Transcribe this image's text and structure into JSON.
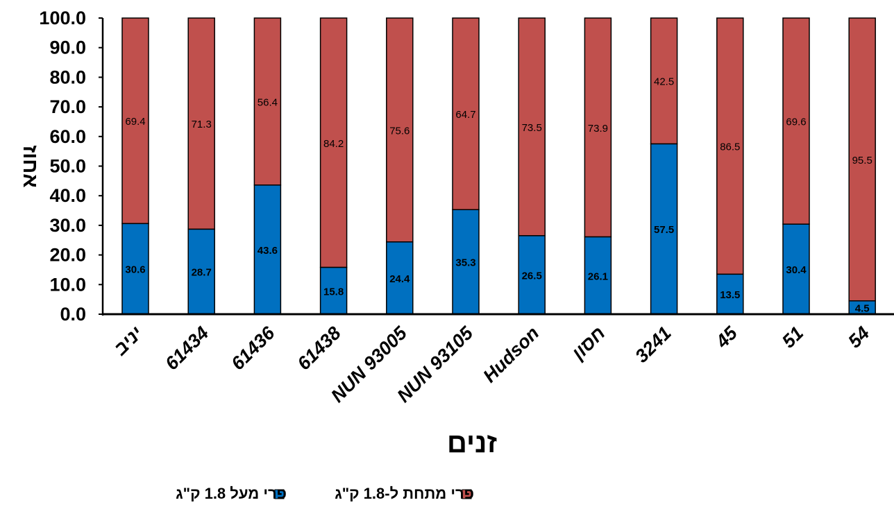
{
  "chart_data": {
    "type": "bar",
    "stacked": true,
    "categories": [
      "יניב",
      "61434",
      "61436",
      "61438",
      "NUN 93005",
      "NUN 93105",
      "Hudson",
      "חסון",
      "3241",
      "45",
      "51",
      "54"
    ],
    "series": [
      {
        "name": "פרי מעל 1.8 ק\"ג",
        "color": "#0070C0",
        "values": [
          30.6,
          28.7,
          43.6,
          15.8,
          24.4,
          35.3,
          26.5,
          26.1,
          57.5,
          13.5,
          30.4,
          4.5
        ]
      },
      {
        "name": "פרי מתחת ל-1.8 ק\"ג",
        "color": "#C0504D",
        "values": [
          69.4,
          71.3,
          56.4,
          84.2,
          75.6,
          64.7,
          73.5,
          73.9,
          42.5,
          86.5,
          69.6,
          95.5
        ]
      }
    ],
    "value_labels": {
      "bottom": [
        "30.6",
        "28.7",
        "43.6",
        "15.8",
        "24.4",
        "35.3",
        "26.5",
        "26.1",
        "57.5",
        "13.5",
        "30.4",
        "4.5"
      ],
      "top": [
        "69.4",
        "71.3",
        "56.4",
        "84.2",
        "75.6",
        "64.7",
        "73.5",
        "73.9",
        "42.5",
        "86.5",
        "69.6",
        "95.5"
      ]
    },
    "yticks": [
      "0.0",
      "10.0",
      "20.0",
      "30.0",
      "40.0",
      "50.0",
      "60.0",
      "70.0",
      "80.0",
      "90.0",
      "100.0"
    ],
    "ylim": [
      0,
      100
    ],
    "xlabel": "זנים",
    "ylabel": "אחוז",
    "legend_position": "bottom",
    "grid": false
  }
}
